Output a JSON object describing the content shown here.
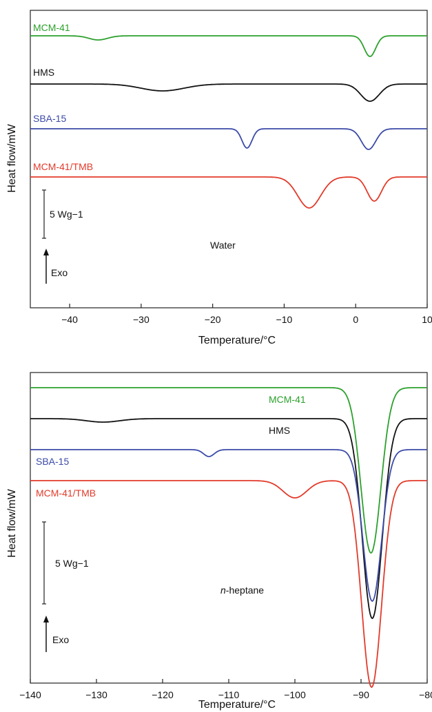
{
  "chart_data": [
    {
      "type": "line",
      "ylabel": "Heat flow/mW",
      "xlabel": "Temperature/°C",
      "xlim": [
        -45.5,
        10
      ],
      "xticks": [
        -40,
        -30,
        -20,
        -10,
        0,
        10
      ],
      "xtick_labels": [
        "−40",
        "−30",
        "−20",
        "−10",
        "0",
        "10"
      ],
      "scale_bar_label": "5 Wg−1",
      "solvent_label": "Water",
      "exo_label": "Exo",
      "series": [
        {
          "name": "MCM-41",
          "color": "#2ca02c",
          "baseline": 0,
          "dips": [
            [
              -36,
              6,
              1.3
            ],
            [
              2,
              30,
              0.8
            ]
          ]
        },
        {
          "name": "HMS",
          "color": "#111111",
          "baseline": 70,
          "dips": [
            [
              -27,
              10,
              3.0
            ],
            [
              2,
              25,
              1.3
            ]
          ]
        },
        {
          "name": "SBA-15",
          "color": "#3b4aa8",
          "baseline": 135,
          "dips": [
            [
              -15.2,
              28,
              0.7
            ],
            [
              1.8,
              30,
              1.0
            ]
          ]
        },
        {
          "name": "MCM-41/TMB",
          "color": "#e23a2a",
          "baseline": 205,
          "dips": [
            [
              -6.5,
              45,
              1.6
            ],
            [
              2.6,
              35,
              1.0
            ]
          ]
        }
      ]
    },
    {
      "type": "line",
      "ylabel": "Heat flow/mW",
      "xlabel": "Temperature/°C",
      "xlim": [
        -140,
        -80
      ],
      "xticks": [
        -140,
        -130,
        -120,
        -110,
        -100,
        -90,
        -80
      ],
      "xtick_labels": [
        "−140",
        "−130",
        "−120",
        "−110",
        "−100",
        "−90",
        "−80"
      ],
      "scale_bar_label": "5 Wg−1",
      "solvent_label": "n-heptane",
      "solvent_label_italic": "n",
      "solvent_label_rest": "-heptane",
      "exo_label": "Exo",
      "series": [
        {
          "name": "MCM-41",
          "color": "#2ca02c",
          "baseline": 0,
          "dips": [
            [
              -88.5,
              240,
              1.5
            ]
          ]
        },
        {
          "name": "HMS",
          "color": "#111111",
          "baseline": 45,
          "dips": [
            [
              -129,
              5,
              2.5
            ],
            [
              -88.3,
              290,
              1.5
            ]
          ]
        },
        {
          "name": "SBA-15",
          "color": "#3b4aa8",
          "baseline": 90,
          "dips": [
            [
              -113,
              10,
              0.8
            ],
            [
              -88.3,
              220,
              1.4
            ]
          ]
        },
        {
          "name": "MCM-41/TMB",
          "color": "#e23a2a",
          "baseline": 135,
          "dips": [
            [
              -100,
              25,
              1.8
            ],
            [
              -88.4,
              300,
              1.5
            ]
          ]
        }
      ]
    }
  ]
}
